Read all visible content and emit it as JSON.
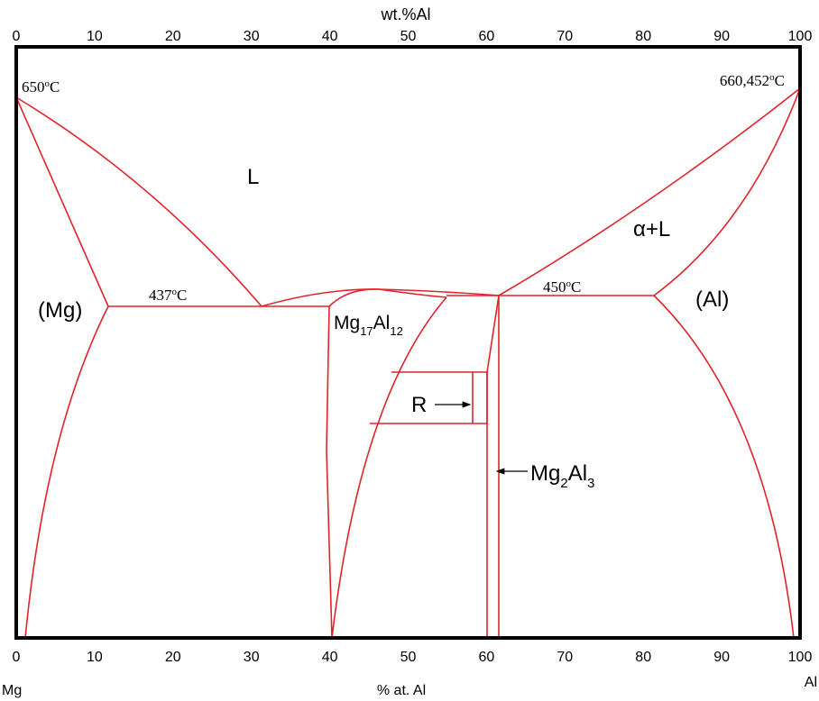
{
  "top_axis": {
    "title": "wt.%Al",
    "ticks": [
      "0",
      "10",
      "20",
      "30",
      "40",
      "50",
      "60",
      "70",
      "80",
      "90",
      "100"
    ]
  },
  "bottom_axis": {
    "title": "% at. Al",
    "ticks": [
      "0",
      "10",
      "20",
      "30",
      "40",
      "50",
      "60",
      "70",
      "80",
      "90",
      "100"
    ],
    "left_end": "Mg",
    "right_end": "Al"
  },
  "temperatures": {
    "mg_melt": "650",
    "al_melt": "660,452",
    "eutectic_left": "437",
    "eutectic_right": "450",
    "degree_mark": "o",
    "unit": "C"
  },
  "phases": {
    "liquid": "L",
    "alpha_liquid": "α+L",
    "mg_solid": "(Mg)",
    "al_solid": "(Al)",
    "r_phase": "R",
    "mg17al12": {
      "base1": "Mg",
      "sub1": "17",
      "base2": "Al",
      "sub2": "12"
    },
    "mg2al3": {
      "base1": "Mg",
      "sub1": "2",
      "base2": "Al",
      "sub2": "3"
    }
  },
  "colors": {
    "phase_lines": "#e0242a",
    "frame": "#000000",
    "text": "#000000"
  }
}
